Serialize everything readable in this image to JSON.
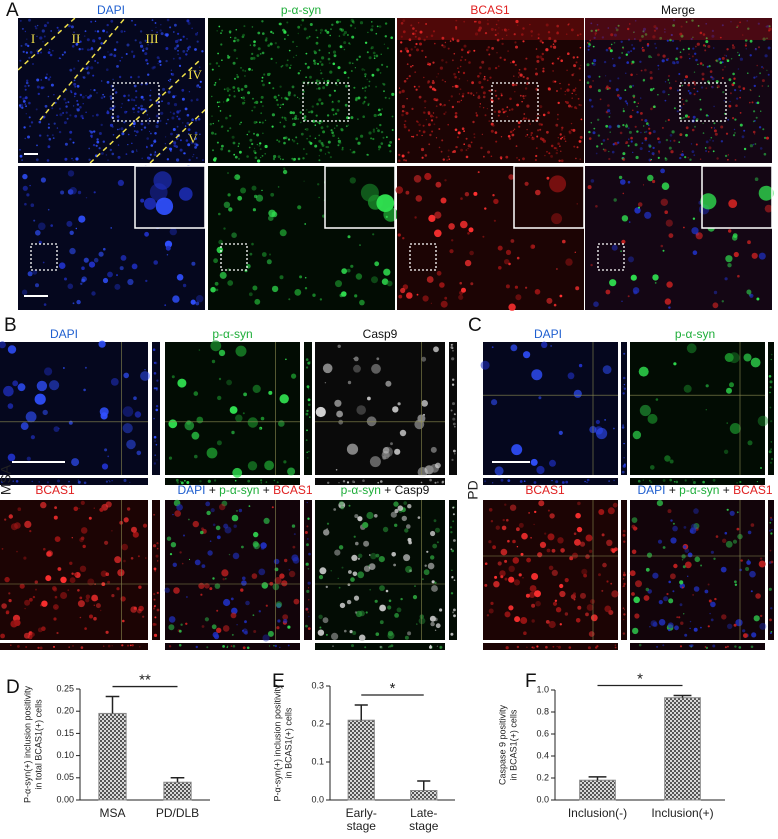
{
  "panels": {
    "A": {
      "label": "A",
      "columns": [
        "DAPI",
        "p-α-syn",
        "BCAS1",
        "Merge"
      ],
      "layers": [
        "I",
        "II",
        "III",
        "IV",
        "V"
      ]
    },
    "B": {
      "label": "B",
      "row_label": "MSA",
      "top": [
        "DAPI",
        "p-α-syn",
        "Casp9"
      ],
      "bottom_single": "BCAS1",
      "merge1": [
        "DAPI",
        "+",
        "p-α-syn",
        "+",
        "BCAS1"
      ],
      "merge2": [
        "p-α-syn",
        "+",
        "Casp9"
      ]
    },
    "C": {
      "label": "C",
      "row_label": "PD",
      "top": [
        "DAPI",
        "p-α-syn"
      ],
      "bottom_single": "BCAS1",
      "merge": [
        "DAPI",
        "+",
        "p-α-syn",
        "+",
        "BCAS1"
      ]
    }
  },
  "chart_data": [
    {
      "type": "bar",
      "panel": "D",
      "ylabel": [
        "P-α-syn(+) inclusion positivity",
        "in total BCAS1(+) cells"
      ],
      "categories": [
        "MSA",
        "PD/DLB"
      ],
      "values": [
        0.195,
        0.04
      ],
      "errors": [
        0.038,
        0.01
      ],
      "color": "#8a8a8a",
      "ylim": [
        0,
        0.25
      ],
      "yticks": [
        {
          "value": 0,
          "label": "0.00"
        },
        0.05,
        {
          "value": 0.1,
          "label": "0.10"
        },
        0.15,
        {
          "value": 0.2,
          "label": "0.20"
        },
        0.25
      ],
      "significance": "**"
    },
    {
      "type": "bar",
      "panel": "E",
      "ylabel": [
        "P-α-syn(+) inclusion positivity",
        "in BCAS1(+) cells"
      ],
      "categories": [
        "Early-\nstage",
        "Late-\nstage"
      ],
      "values": [
        0.21,
        0.025
      ],
      "errors": [
        0.04,
        0.025
      ],
      "color": "#8a8a8a",
      "ylim": [
        0,
        0.3
      ],
      "yticks": [
        {
          "value": 0,
          "label": "0.0"
        },
        0.1,
        0.2,
        0.3
      ],
      "significance": "*"
    },
    {
      "type": "bar",
      "panel": "F",
      "ylabel": [
        "Caspase 9 positivity",
        "in BCAS1(+) cells"
      ],
      "categories": [
        "Inclusion(-)",
        "Inclusion(+)"
      ],
      "values": [
        0.18,
        0.93
      ],
      "errors": [
        0.03,
        0.02
      ],
      "color": "#8a8a8a",
      "ylim": [
        0,
        1.0
      ],
      "yticks": [
        {
          "value": 0,
          "label": "0.0"
        },
        0.2,
        0.4,
        0.6,
        0.8,
        {
          "value": 1,
          "label": "1.0"
        }
      ],
      "significance": "*"
    }
  ]
}
